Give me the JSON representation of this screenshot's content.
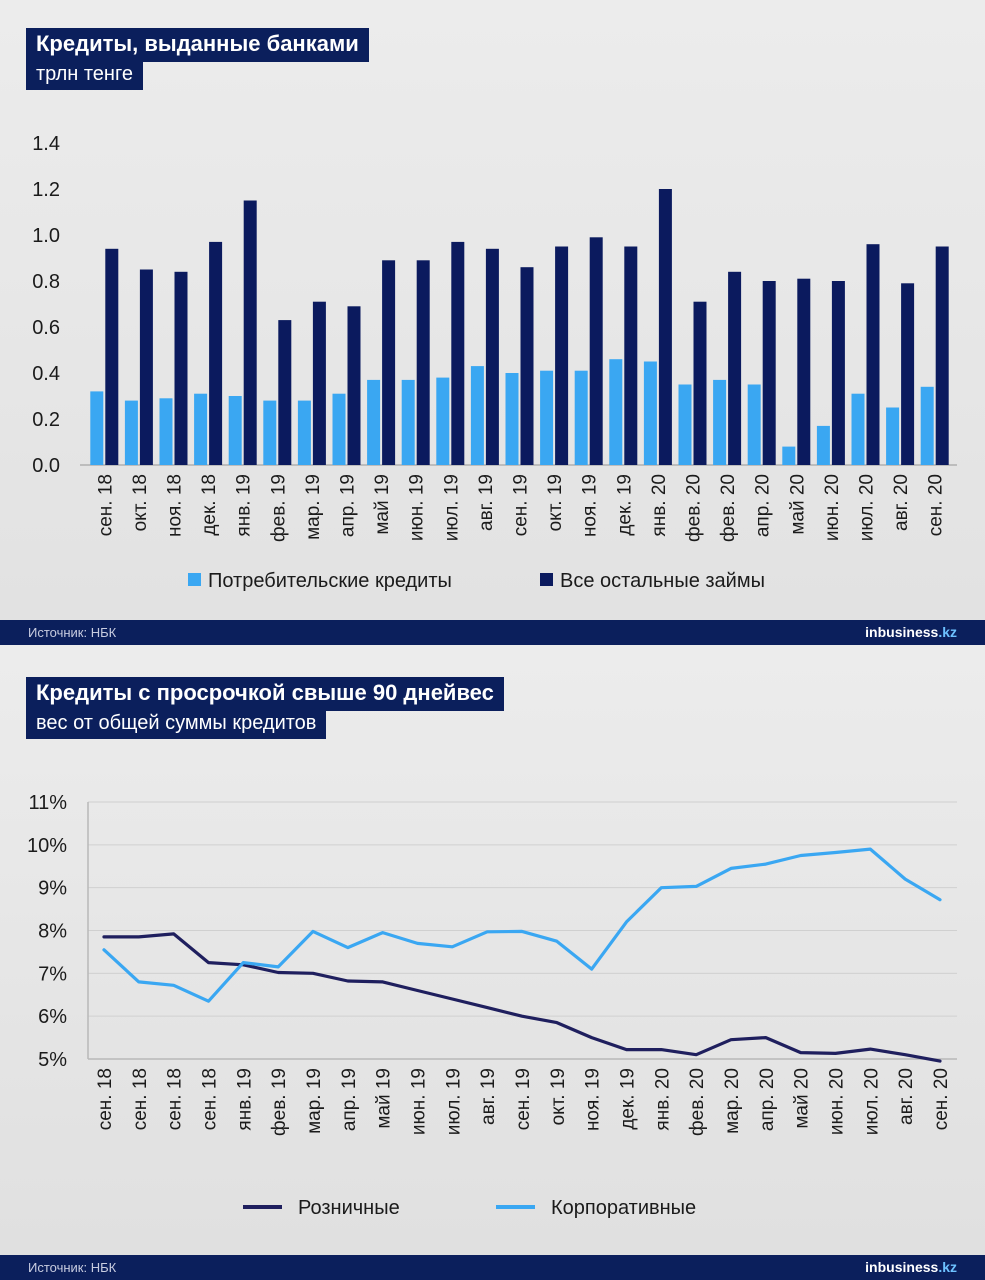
{
  "chart_data": [
    {
      "type": "bar",
      "title": "Кредиты, выданные банками",
      "subtitle": "трлн тенге",
      "categories": [
        "сен. 18",
        "окт. 18",
        "ноя. 18",
        "дек. 18",
        "янв. 19",
        "фев. 19",
        "мар. 19",
        "апр. 19",
        "май 19",
        "июн. 19",
        "июл. 19",
        "авг. 19",
        "сен. 19",
        "окт. 19",
        "ноя. 19",
        "дек. 19",
        "янв. 20",
        "фев. 20",
        "фев. 20",
        "апр. 20",
        "май 20",
        "июн. 20",
        "июл. 20",
        "авг. 20",
        "сен. 20"
      ],
      "series": [
        {
          "name": "Потребительские кредиты",
          "color": "#3aa7f2",
          "values": [
            0.32,
            0.28,
            0.29,
            0.31,
            0.3,
            0.28,
            0.28,
            0.31,
            0.37,
            0.37,
            0.38,
            0.43,
            0.4,
            0.41,
            0.41,
            0.46,
            0.45,
            0.35,
            0.37,
            0.35,
            0.08,
            0.17,
            0.31,
            0.25,
            0.34
          ]
        },
        {
          "name": "Все остальные займы",
          "color": "#0b1a5e",
          "values": [
            0.94,
            0.85,
            0.84,
            0.97,
            1.15,
            0.63,
            0.71,
            0.69,
            0.89,
            0.89,
            0.97,
            0.94,
            0.86,
            0.95,
            0.99,
            0.95,
            1.2,
            0.71,
            0.84,
            0.8,
            0.81,
            0.8,
            0.96,
            0.79,
            0.95
          ]
        }
      ],
      "ylim": [
        0,
        1.4
      ],
      "yticks": [
        "0.0",
        "0.2",
        "0.4",
        "0.6",
        "0.8",
        "1.0",
        "1.2",
        "1.4"
      ],
      "legend": "bottom",
      "source": "Источник: НБК",
      "brand_prefix": "in",
      "brand_rest": "business",
      "brand_domain": ".kz"
    },
    {
      "type": "line",
      "title": "Кредиты с просрочкой свыше 90 днейвес",
      "subtitle": "вес от общей суммы кредитов",
      "categories": [
        "сен. 18",
        "сен. 18",
        "сен. 18",
        "сен. 18",
        "янв. 19",
        "фев. 19",
        "мар. 19",
        "апр. 19",
        "май 19",
        "июн. 19",
        "июл. 19",
        "авг. 19",
        "сен. 19",
        "окт. 19",
        "ноя. 19",
        "дек. 19",
        "янв. 20",
        "фев. 20",
        "мар. 20",
        "апр. 20",
        "май 20",
        "июн. 20",
        "июл. 20",
        "авг. 20",
        "сен. 20"
      ],
      "series": [
        {
          "name": "Розничные",
          "color": "#1f1f5e",
          "values": [
            7.85,
            7.85,
            7.92,
            7.25,
            7.2,
            7.02,
            7.0,
            6.82,
            6.8,
            6.6,
            6.4,
            6.2,
            6.0,
            5.85,
            5.5,
            5.22,
            5.22,
            5.1,
            5.45,
            5.5,
            5.15,
            5.13,
            5.23,
            5.1,
            4.95
          ]
        },
        {
          "name": "Корпоративные",
          "color": "#3aa7f2",
          "values": [
            7.55,
            6.8,
            6.72,
            6.35,
            7.25,
            7.15,
            7.98,
            7.6,
            7.95,
            7.7,
            7.62,
            7.97,
            7.98,
            7.75,
            7.1,
            8.2,
            9.0,
            9.03,
            9.45,
            9.55,
            9.75,
            9.82,
            9.9,
            9.2,
            8.72
          ]
        }
      ],
      "ylim": [
        5,
        11
      ],
      "yticks": [
        "5%",
        "6%",
        "7%",
        "8%",
        "9%",
        "10%",
        "11%"
      ],
      "legend": "bottom",
      "source": "Источник: НБК",
      "brand_prefix": "in",
      "brand_rest": "business",
      "brand_domain": ".kz"
    }
  ]
}
